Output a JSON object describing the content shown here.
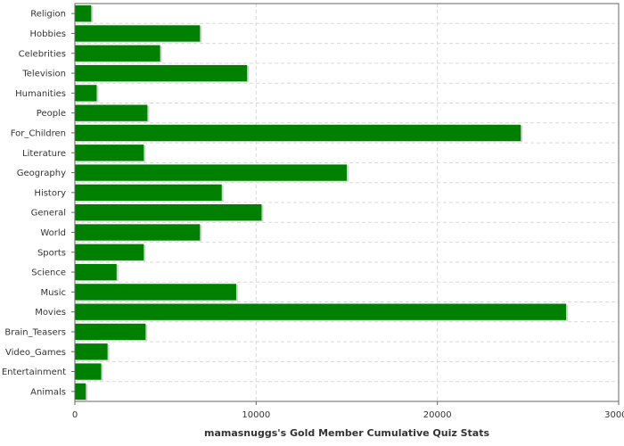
{
  "chart_data": {
    "type": "bar",
    "orientation": "horizontal",
    "title": "",
    "xlabel": "mamasnuggs's Gold Member Cumulative Quiz Stats",
    "ylabel": "",
    "xlim": [
      0,
      30000
    ],
    "x_ticks": [
      "0",
      "10000",
      "20000",
      "30000"
    ],
    "grid": true,
    "bar_color": "#008000",
    "categories": [
      "Religion",
      "Hobbies",
      "Celebrities",
      "Television",
      "Humanities",
      "People",
      "For_Children",
      "Literature",
      "Geography",
      "History",
      "General",
      "World",
      "Sports",
      "Science",
      "Music",
      "Movies",
      "Brain_Teasers",
      "Video_Games",
      "Entertainment",
      "Animals"
    ],
    "values": [
      900,
      6900,
      4700,
      9500,
      1200,
      4000,
      24600,
      3800,
      15000,
      8100,
      10300,
      6900,
      3800,
      2300,
      8900,
      27100,
      3900,
      1800,
      1450,
      600
    ]
  }
}
